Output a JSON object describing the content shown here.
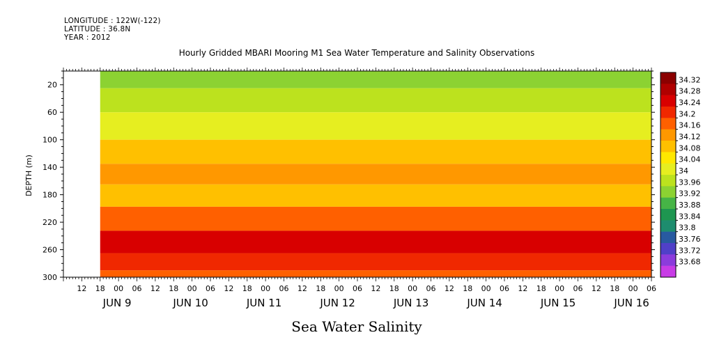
{
  "header": {
    "longitude": "LONGITUDE : 122W(-122)",
    "latitude": "LATITUDE : 36.8N",
    "year": "YEAR : 2012"
  },
  "chart_data": {
    "type": "heatmap",
    "title": "Hourly Gridded MBARI Mooring M1 Sea Water Temperature and Salinity Observations",
    "xlabel": "Sea Water Salinity",
    "ylabel": "DEPTH (m)",
    "ylim": [
      300,
      0
    ],
    "y_ticks": [
      20,
      60,
      100,
      140,
      180,
      220,
      260,
      300
    ],
    "x_range": [
      "2012-06-09 06:00",
      "2012-06-17 06:00"
    ],
    "data_start": "2012-06-09 18:00",
    "hour_ticks": [
      "12",
      "18",
      "00",
      "06",
      "12",
      "18",
      "00",
      "06",
      "12",
      "18",
      "00",
      "06",
      "12",
      "18",
      "00",
      "06",
      "12",
      "18",
      "00",
      "06",
      "12",
      "18",
      "00",
      "06",
      "12",
      "18",
      "00",
      "06",
      "12",
      "18",
      "00",
      "06"
    ],
    "day_labels": [
      "JUN  9",
      "JUN 10",
      "JUN 11",
      "JUN 12",
      "JUN 13",
      "JUN 14",
      "JUN 15",
      "JUN 16"
    ],
    "colorbar": {
      "levels": [
        "34.32",
        "34.28",
        "34.24",
        "34.2",
        "34.16",
        "34.12",
        "34.08",
        "34.04",
        "34",
        "33.96",
        "33.92",
        "33.88",
        "33.84",
        "33.8",
        "33.76",
        "33.72",
        "33.68"
      ],
      "colors": [
        "#8b0000",
        "#b00000",
        "#d80000",
        "#f02800",
        "#ff6000",
        "#ff9800",
        "#ffc000",
        "#ffe800",
        "#e6ee20",
        "#bce21e",
        "#8cd232",
        "#46b446",
        "#1e9650",
        "#1e8c6e",
        "#285aa0",
        "#5040c8",
        "#8c3cdc",
        "#c83ce6"
      ]
    },
    "depth_profile": [
      {
        "depth": 10,
        "salinity": 33.93
      },
      {
        "depth": 40,
        "salinity": 33.96
      },
      {
        "depth": 80,
        "salinity": 34.02
      },
      {
        "depth": 120,
        "salinity": 34.09
      },
      {
        "depth": 150,
        "salinity": 34.15
      },
      {
        "depth": 180,
        "salinity": 34.1
      },
      {
        "depth": 215,
        "salinity": 34.17
      },
      {
        "depth": 250,
        "salinity": 34.26
      },
      {
        "depth": 280,
        "salinity": 34.2
      },
      {
        "depth": 300,
        "salinity": 34.16
      }
    ],
    "grid": false,
    "legend": "right colorbar"
  }
}
